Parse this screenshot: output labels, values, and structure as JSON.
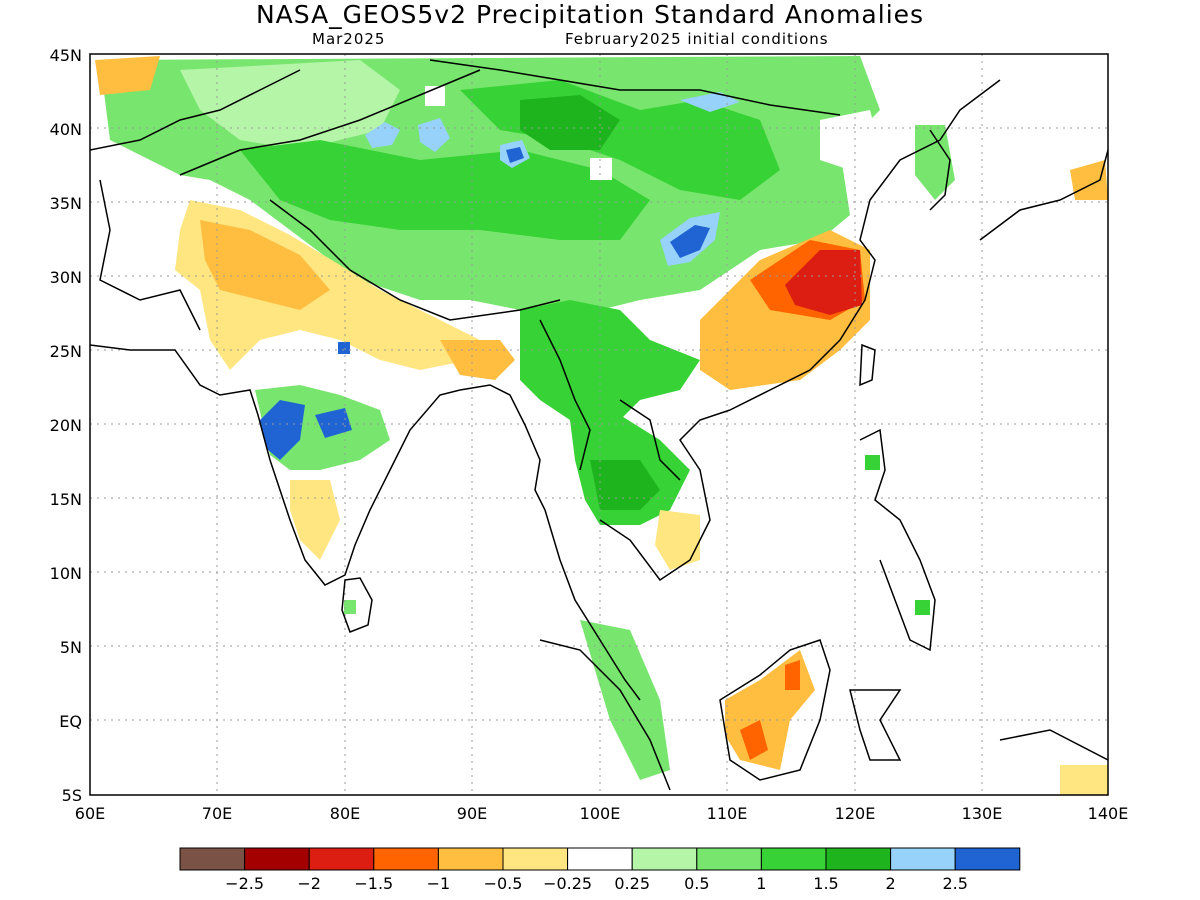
{
  "title": "NASA_GEOS5v2 Precipitation Standard Anomalies",
  "subtitle_left": "Mar2025",
  "subtitle_right": "February2025 initial conditions",
  "lat_ticks": [
    "45N",
    "40N",
    "35N",
    "30N",
    "25N",
    "20N",
    "15N",
    "10N",
    "5N",
    "EQ",
    "5S"
  ],
  "lon_ticks": [
    "60E",
    "70E",
    "80E",
    "90E",
    "100E",
    "110E",
    "120E",
    "130E",
    "140E"
  ],
  "colorbar": {
    "colors": [
      "#7b5246",
      "#a50000",
      "#dc1e12",
      "#ff6400",
      "#ffbe40",
      "#ffe680",
      "#ffffff",
      "#b4f5a8",
      "#78e66e",
      "#37d235",
      "#1eb41e",
      "#96d2fa",
      "#1f64d2"
    ],
    "labels": [
      "−2.5",
      "−2",
      "−1.5",
      "−1",
      "−0.5",
      "−0.25",
      "0.25",
      "0.5",
      "1",
      "1.5",
      "2",
      "2.5"
    ]
  },
  "colors": {
    "wet_light": "#b4f5a8",
    "wet": "#78e66e",
    "wet_mid": "#37d235",
    "wet_strong": "#1eb41e",
    "very_wet": "#96d2fa",
    "extreme_wet": "#1f64d2",
    "dry_light": "#ffe680",
    "dry": "#ffbe40",
    "dry_mid": "#ff6400",
    "dry_strong": "#dc1e12"
  }
}
